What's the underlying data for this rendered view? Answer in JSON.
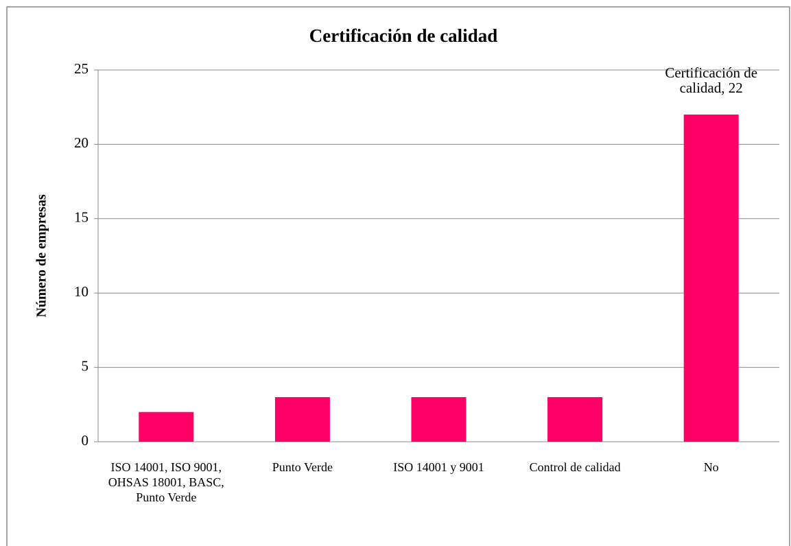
{
  "chart_data": {
    "type": "bar",
    "title": "Certificación de calidad",
    "ylabel": "Número de empresas",
    "categories": [
      "ISO 14001, ISO 9001, OHSAS 18001, BASC, Punto Verde",
      "Punto Verde",
      "ISO 14001 y 9001",
      "Control de calidad",
      "No"
    ],
    "values": [
      2,
      3,
      3,
      3,
      22
    ],
    "value_labels": [
      null,
      null,
      null,
      null,
      "Certificación de calidad, 22"
    ],
    "color": "#ff0066",
    "ylim": [
      0,
      25
    ],
    "yticks": [
      0,
      5,
      10,
      15,
      20,
      25
    ],
    "grid": true
  }
}
